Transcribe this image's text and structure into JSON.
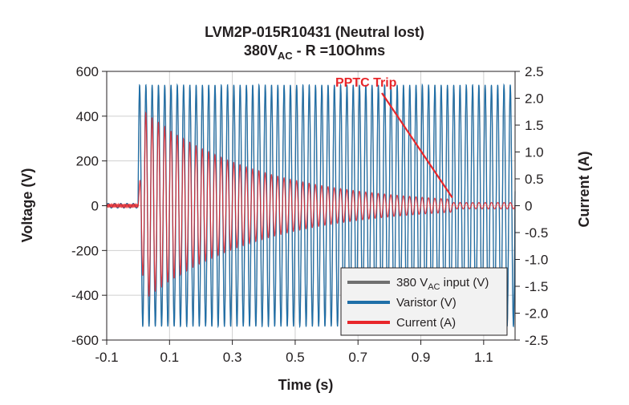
{
  "chart_data": {
    "type": "line",
    "title": "LVM2P-015R10431 (Neutral lost)",
    "subtitle": {
      "prefix": "380V",
      "sub": "AC",
      "suffix": " - R =10Ohms"
    },
    "xlabel": "Time (s)",
    "ylabel_left": "Voltage (V)",
    "ylabel_right": "Current (A)",
    "xlim": [
      -0.1,
      1.2
    ],
    "ylim_left": [
      -600,
      600
    ],
    "ylim_right": [
      -2.5,
      2.5
    ],
    "x_ticks": [
      "-0.1",
      "0.1",
      "0.3",
      "0.5",
      "0.7",
      "0.9",
      "1.1"
    ],
    "y_left_ticks": [
      "600",
      "400",
      "200",
      "0",
      "-200",
      "-400",
      "-600"
    ],
    "y_right_ticks": [
      "2.5",
      "2.0",
      "1.5",
      "1.0",
      "0.5",
      "0",
      "-0.5",
      "-1.0",
      "-1.5",
      "-2.0",
      "-2.5"
    ],
    "grid": true,
    "legend_position": "bottom-right",
    "series": [
      {
        "name": "380 V",
        "name_sub": "AC",
        "name_suffix": " input (V)",
        "color": "#707070",
        "axis": "left",
        "description": "50 Hz sine input",
        "amplitude_before_0": 10,
        "amplitude_after_0": 537
      },
      {
        "name": "Varistor (V)",
        "color": "#1f6fa8",
        "axis": "left",
        "amplitude_before_0": 10,
        "amplitude_after_0": 540,
        "onset": 0.0
      },
      {
        "name": "Current (A)",
        "color": "#e8262a",
        "axis": "right",
        "onset": 0.0,
        "peak_at": 0.02,
        "peak_amplitude": 1.75,
        "amplitude_at_1_0": 0.12,
        "trip_time": 1.0
      }
    ],
    "annotations": [
      {
        "text": "PPTC Trip",
        "color": "#e8262a",
        "points_to": {
          "x": 1.0,
          "y_right": 0.15
        }
      }
    ]
  }
}
